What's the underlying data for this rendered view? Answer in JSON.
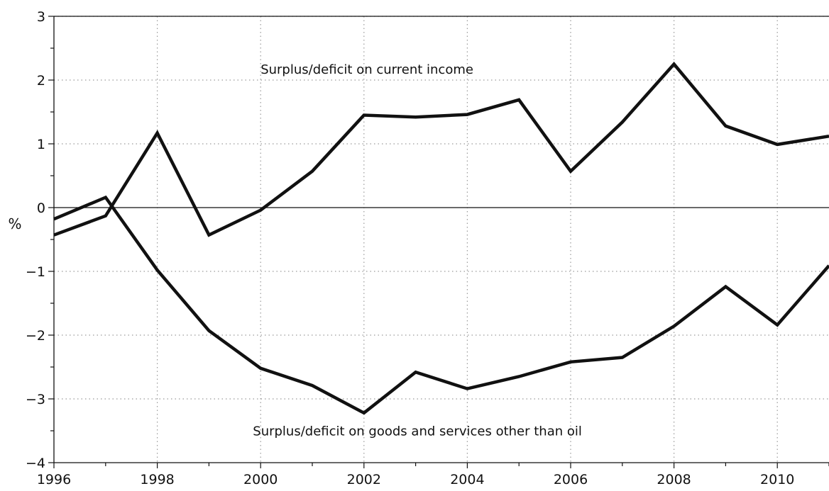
{
  "chart_data": {
    "type": "line",
    "title": "",
    "xlabel": "",
    "ylabel": "%",
    "xlim": [
      1996,
      2011
    ],
    "ylim": [
      -4,
      3
    ],
    "x_ticks": [
      1996,
      1998,
      2000,
      2002,
      2004,
      2006,
      2008,
      2010
    ],
    "x_tick_labels": [
      "1996",
      "1998",
      "2000",
      "2002",
      "2004",
      "2006",
      "2008",
      "2010"
    ],
    "y_ticks": [
      -4,
      -3,
      -2,
      -1,
      0,
      1,
      2,
      3
    ],
    "y_tick_labels": [
      "−4",
      "−3",
      "−2",
      "−1",
      "0",
      "1",
      "2",
      "3"
    ],
    "grid": true,
    "x": [
      1996,
      1997,
      1998,
      1999,
      2000,
      2001,
      2002,
      2003,
      2004,
      2005,
      2006,
      2007,
      2008,
      2009,
      2010,
      2011
    ],
    "series": [
      {
        "values": [
          -0.43,
          -0.13,
          1.17,
          -0.43,
          -0.04,
          0.57,
          1.45,
          1.42,
          1.46,
          1.69,
          0.57,
          1.34,
          2.25,
          1.28,
          0.99,
          1.12
        ]
      },
      {
        "values": [
          -0.18,
          0.16,
          -0.98,
          -1.93,
          -2.52,
          -2.79,
          -3.22,
          -2.58,
          -2.84,
          -2.65,
          -2.42,
          -2.35,
          -1.86,
          -1.24,
          -1.84,
          -0.91
        ]
      }
    ],
    "annotations": [
      {
        "text": "Surplus/deficit on current income",
        "x": 2000.0,
        "y": 2.1
      },
      {
        "text": "Surplus/deficit on goods and services other than oil",
        "x": 1999.85,
        "y": -3.57
      }
    ],
    "colors": {
      "line": "#111111",
      "grid": "#9a9a9a",
      "axis": "#111111"
    }
  }
}
